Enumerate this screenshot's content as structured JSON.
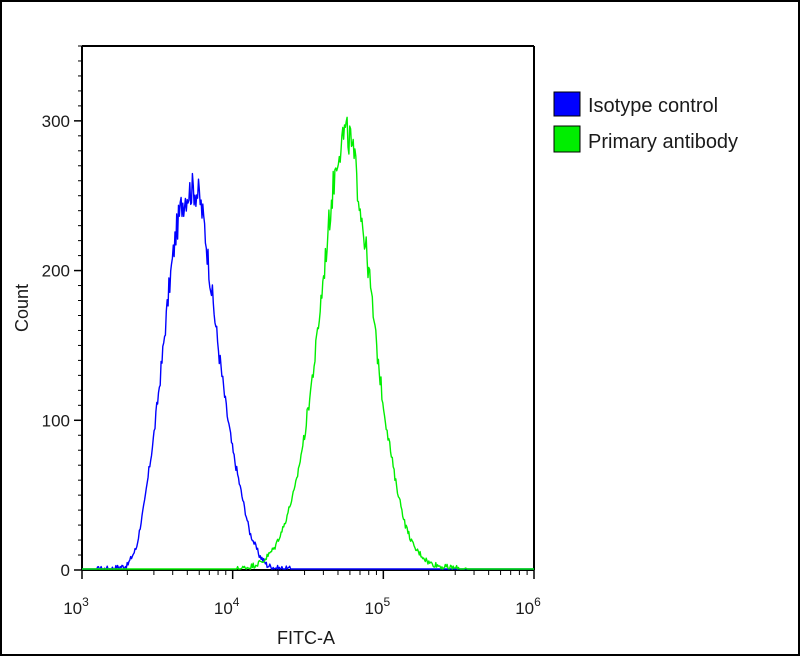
{
  "chart_data": {
    "type": "line",
    "xlabel": "FITC-A",
    "ylabel": "Count",
    "x_scale": "log",
    "xlim": [
      1000,
      1000000
    ],
    "ylim": [
      0,
      350
    ],
    "grid": false,
    "legend_position": "top-right",
    "x_ticks": [
      {
        "base": "10",
        "exp": "3",
        "value": 1000
      },
      {
        "base": "10",
        "exp": "4",
        "value": 10000
      },
      {
        "base": "10",
        "exp": "5",
        "value": 100000
      },
      {
        "base": "10",
        "exp": "6",
        "value": 1000000
      }
    ],
    "y_ticks": [
      {
        "label": "0",
        "value": 0
      },
      {
        "label": "100",
        "value": 100
      },
      {
        "label": "200",
        "value": 200
      },
      {
        "label": "300",
        "value": 300
      }
    ],
    "series": [
      {
        "name": "Isotype control",
        "color": "#0000ff",
        "points": [
          [
            1000,
            0
          ],
          [
            1600,
            1
          ],
          [
            2000,
            3
          ],
          [
            2300,
            15
          ],
          [
            2600,
            45
          ],
          [
            3000,
            90
          ],
          [
            3400,
            140
          ],
          [
            3800,
            190
          ],
          [
            4200,
            225
          ],
          [
            4600,
            245
          ],
          [
            5000,
            252
          ],
          [
            5500,
            255
          ],
          [
            6000,
            250
          ],
          [
            6500,
            230
          ],
          [
            7000,
            200
          ],
          [
            8000,
            150
          ],
          [
            9000,
            110
          ],
          [
            10000,
            80
          ],
          [
            11500,
            50
          ],
          [
            13000,
            25
          ],
          [
            15000,
            10
          ],
          [
            17000,
            3
          ],
          [
            20000,
            1
          ],
          [
            30000,
            0
          ],
          [
            1000000,
            0
          ]
        ]
      },
      {
        "name": "Primary antibody",
        "color": "#00ee00",
        "points": [
          [
            1000,
            0
          ],
          [
            10000,
            0
          ],
          [
            13000,
            2
          ],
          [
            16000,
            6
          ],
          [
            19000,
            15
          ],
          [
            22000,
            30
          ],
          [
            26000,
            55
          ],
          [
            30000,
            90
          ],
          [
            35000,
            140
          ],
          [
            40000,
            195
          ],
          [
            45000,
            245
          ],
          [
            50000,
            280
          ],
          [
            55000,
            292
          ],
          [
            60000,
            288
          ],
          [
            65000,
            270
          ],
          [
            70000,
            245
          ],
          [
            80000,
            200
          ],
          [
            90000,
            150
          ],
          [
            100000,
            110
          ],
          [
            120000,
            60
          ],
          [
            140000,
            30
          ],
          [
            160000,
            15
          ],
          [
            200000,
            5
          ],
          [
            250000,
            2
          ],
          [
            400000,
            0
          ],
          [
            1000000,
            0
          ]
        ]
      }
    ]
  }
}
